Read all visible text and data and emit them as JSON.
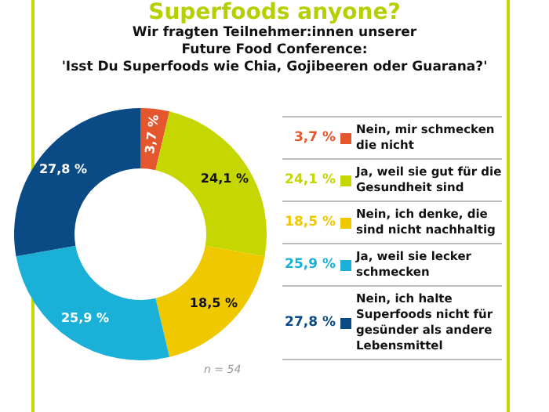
{
  "chart_data": {
    "type": "donut",
    "title": "Superfoods anyone?",
    "subtitle": "Wir fragten Teilnehmer:innen unserer\nFuture Food Conference:\n'Isst Du Superfoods wie Chia, Gojibeeren oder Guarana?'",
    "categories": [
      "Nein, mir schmecken die nicht",
      "Ja, weil sie gut für die Gesundheit sind",
      "Nein, ich denke, die sind nicht nachhaltig",
      "Ja, weil sie lecker schmecken",
      "Nein, ich halte Superfoods nicht für gesünder als andere Lebensmittel"
    ],
    "values": [
      3.7,
      24.1,
      18.5,
      25.9,
      27.8
    ],
    "colors": [
      "#e4572e",
      "#c5d600",
      "#f0c800",
      "#1ab0d8",
      "#0a4a85"
    ],
    "value_labels": [
      "3,7 %",
      "24,1 %",
      "18,5 %",
      "25,9 %",
      "27,8 %"
    ],
    "legend": "right",
    "annotations": [
      "n = 54"
    ]
  }
}
